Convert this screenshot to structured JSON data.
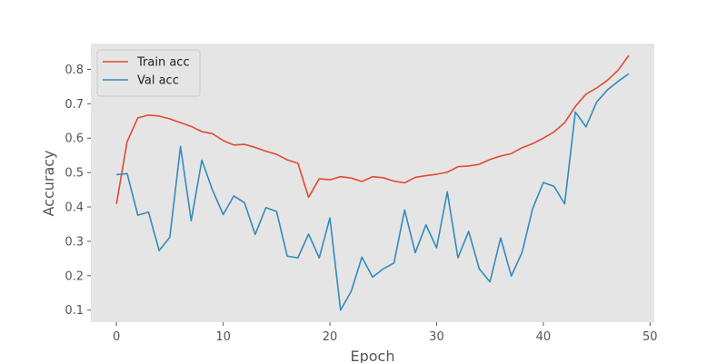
{
  "chart_data": {
    "type": "line",
    "title": "",
    "xlabel": "Epoch",
    "ylabel": "Accuracy",
    "xlim": [
      -2.4,
      50.4
    ],
    "ylim": [
      0.065,
      0.875
    ],
    "xticks": [
      0,
      10,
      20,
      30,
      40,
      50
    ],
    "yticks": [
      0.1,
      0.2,
      0.3,
      0.4,
      0.5,
      0.6,
      0.7,
      0.8
    ],
    "grid": false,
    "legend_position": "top-left",
    "background": "#e5e5e5",
    "x": [
      0,
      1,
      2,
      3,
      4,
      5,
      6,
      7,
      8,
      9,
      10,
      11,
      12,
      13,
      14,
      15,
      16,
      17,
      18,
      19,
      20,
      21,
      22,
      23,
      24,
      25,
      26,
      27,
      28,
      29,
      30,
      31,
      32,
      33,
      34,
      35,
      36,
      37,
      38,
      39,
      40,
      41,
      42,
      43,
      44,
      45,
      46,
      47,
      48
    ],
    "series": [
      {
        "name": "Train acc",
        "color": "#e24a33",
        "values": [
          0.409,
          0.59,
          0.659,
          0.667,
          0.664,
          0.656,
          0.645,
          0.634,
          0.619,
          0.613,
          0.593,
          0.58,
          0.582,
          0.573,
          0.562,
          0.553,
          0.537,
          0.527,
          0.428,
          0.482,
          0.479,
          0.488,
          0.484,
          0.474,
          0.488,
          0.485,
          0.475,
          0.47,
          0.486,
          0.491,
          0.495,
          0.501,
          0.517,
          0.519,
          0.524,
          0.538,
          0.548,
          0.555,
          0.572,
          0.584,
          0.6,
          0.618,
          0.645,
          0.692,
          0.728,
          0.746,
          0.768,
          0.797,
          0.84
        ]
      },
      {
        "name": "Val acc",
        "color": "#348abd",
        "values": [
          0.494,
          0.497,
          0.376,
          0.385,
          0.273,
          0.312,
          0.576,
          0.36,
          0.536,
          0.449,
          0.378,
          0.432,
          0.412,
          0.32,
          0.398,
          0.387,
          0.257,
          0.252,
          0.321,
          0.252,
          0.368,
          0.1,
          0.155,
          0.254,
          0.196,
          0.22,
          0.237,
          0.391,
          0.267,
          0.348,
          0.281,
          0.444,
          0.252,
          0.329,
          0.22,
          0.182,
          0.31,
          0.199,
          0.267,
          0.395,
          0.471,
          0.46,
          0.409,
          0.676,
          0.633,
          0.705,
          0.74,
          0.765,
          0.787
        ]
      }
    ]
  }
}
